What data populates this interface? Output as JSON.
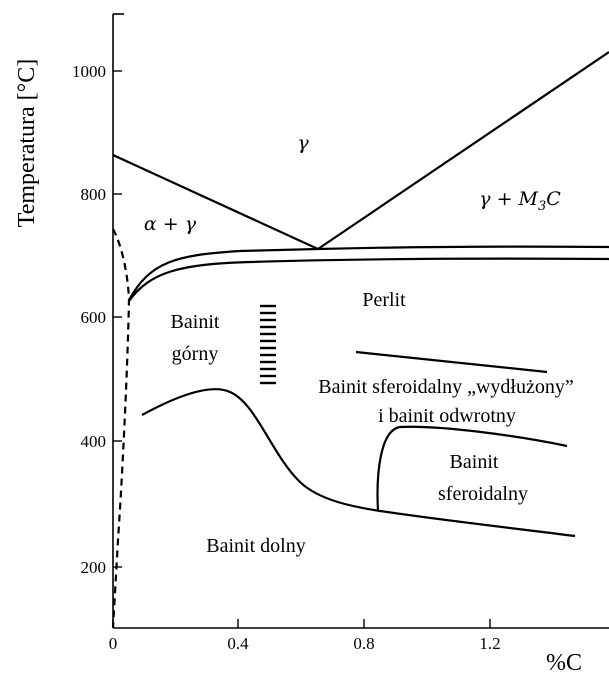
{
  "axes": {
    "y_title": "Temperatura [°C]",
    "x_title": "%C",
    "y_ticks": [
      "200",
      "400",
      "600",
      "800",
      "1000"
    ],
    "x_ticks": [
      "0",
      "0.4",
      "0.8",
      "1.2"
    ]
  },
  "regions": {
    "gamma": "γ",
    "alpha_gamma": "α + γ",
    "gamma_m3c_prefix": "γ + M",
    "gamma_m3c_sub": "3",
    "gamma_m3c_suffix": "C",
    "perlit": "Perlit",
    "bainit_gorny_1": "Bainit",
    "bainit_gorny_2": "górny",
    "bainit_sfer_wydl_1": "Bainit sferoidalny „wydłużony”",
    "bainit_sfer_wydl_2": "i bainit odwrotny",
    "bainit_sfer_1": "Bainit",
    "bainit_sfer_2": "sferoidalny",
    "bainit_dolny": "Bainit dolny"
  }
}
